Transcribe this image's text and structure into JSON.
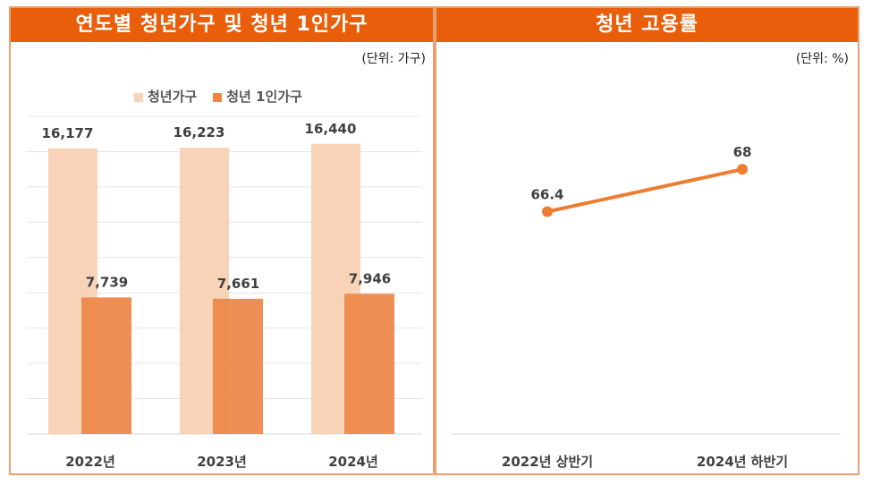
{
  "chart_data": [
    {
      "type": "bar",
      "title": "연도별 청년가구 및 청년 1인가구",
      "unit": "(단위: 가구)",
      "categories": [
        "2022년",
        "2023년",
        "2024년"
      ],
      "series": [
        {
          "name": "청년가구",
          "values": [
            16177,
            16223,
            16440
          ],
          "labels": [
            "16,177",
            "16,223",
            "16,440"
          ],
          "color": "#f9d3b8"
        },
        {
          "name": "청년 1인가구",
          "values": [
            7739,
            7661,
            7946
          ],
          "labels": [
            "7,739",
            "7,661",
            "7,946"
          ],
          "color": "#ee8546"
        }
      ],
      "ylim": [
        0,
        18000
      ],
      "grid": true,
      "legend": "top-center"
    },
    {
      "type": "line",
      "title": "청년 고용률",
      "unit": "(단위: %)",
      "categories": [
        "2022년 상반기",
        "2024년 하반기"
      ],
      "series": [
        {
          "values": [
            66.4,
            68
          ],
          "labels": [
            "66.4",
            "68"
          ],
          "color": "#ed7d31"
        }
      ],
      "ylim": [
        60,
        70
      ],
      "grid": false
    }
  ],
  "colors": {
    "header": "#e85e0b",
    "border": "#eaa070"
  }
}
